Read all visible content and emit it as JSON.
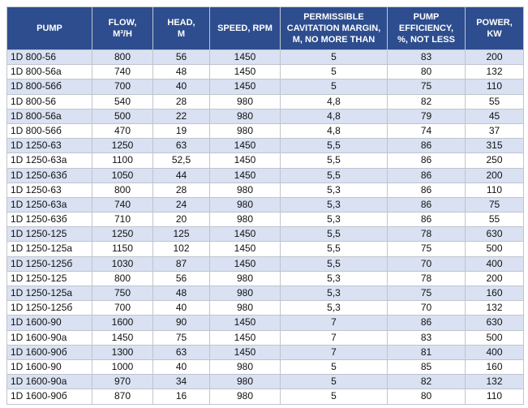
{
  "colors": {
    "header_bg": "#2d4d8e",
    "header_text": "#ffffff",
    "row_alt_bg": "#d9e1f2",
    "row_bg": "#ffffff",
    "border": "#bfc5cd",
    "body_text": "#111111"
  },
  "table": {
    "columns": [
      {
        "id": "pump",
        "label": "PUMP",
        "lines": [
          "PUMP"
        ]
      },
      {
        "id": "flow",
        "label": "FLOW, M³/H",
        "lines": [
          "FLOW,",
          "M³/H"
        ]
      },
      {
        "id": "head",
        "label": "HEAD, M",
        "lines": [
          "HEAD,",
          "M"
        ]
      },
      {
        "id": "speed",
        "label": "SPEED, RPM",
        "lines": [
          "SPEED, RPM"
        ]
      },
      {
        "id": "cavitation",
        "label": "PERMISSIBLE CAVITATION MARGIN, M, NO MORE THAN",
        "lines": [
          "PERMISSIBLE",
          "CAVITATION MARGIN,",
          "M, NO MORE THAN"
        ]
      },
      {
        "id": "efficiency",
        "label": "PUMP EFFICIENCY, %, NOT LESS",
        "lines": [
          "PUMP",
          "EFFICIENCY,",
          "%, NOT LESS"
        ]
      },
      {
        "id": "power",
        "label": "POWER, KW",
        "lines": [
          "POWER,",
          "KW"
        ]
      }
    ],
    "rows": [
      [
        "1D 800-56",
        "800",
        "56",
        "1450",
        "5",
        "83",
        "200"
      ],
      [
        "1D 800-56a",
        "740",
        "48",
        "1450",
        "5",
        "80",
        "132"
      ],
      [
        "1D 800-56б",
        "700",
        "40",
        "1450",
        "5",
        "75",
        "110"
      ],
      [
        "1D 800-56",
        "540",
        "28",
        "980",
        "4,8",
        "82",
        "55"
      ],
      [
        "1D 800-56a",
        "500",
        "22",
        "980",
        "4,8",
        "79",
        "45"
      ],
      [
        "1D 800-56б",
        "470",
        "19",
        "980",
        "4,8",
        "74",
        "37"
      ],
      [
        "1D 1250-63",
        "1250",
        "63",
        "1450",
        "5,5",
        "86",
        "315"
      ],
      [
        "1D 1250-63a",
        "1100",
        "52,5",
        "1450",
        "5,5",
        "86",
        "250"
      ],
      [
        "1D 1250-63б",
        "1050",
        "44",
        "1450",
        "5,5",
        "86",
        "200"
      ],
      [
        "1D 1250-63",
        "800",
        "28",
        "980",
        "5,3",
        "86",
        "110"
      ],
      [
        "1D 1250-63a",
        "740",
        "24",
        "980",
        "5,3",
        "86",
        "75"
      ],
      [
        "1D 1250-63б",
        "710",
        "20",
        "980",
        "5,3",
        "86",
        "55"
      ],
      [
        "1D 1250-125",
        "1250",
        "125",
        "1450",
        "5,5",
        "78",
        "630"
      ],
      [
        "1D 1250-125a",
        "1150",
        "102",
        "1450",
        "5,5",
        "75",
        "500"
      ],
      [
        "1D 1250-125б",
        "1030",
        "87",
        "1450",
        "5,5",
        "70",
        "400"
      ],
      [
        "1D 1250-125",
        "800",
        "56",
        "980",
        "5,3",
        "78",
        "200"
      ],
      [
        "1D 1250-125a",
        "750",
        "48",
        "980",
        "5,3",
        "75",
        "160"
      ],
      [
        "1D 1250-125б",
        "700",
        "40",
        "980",
        "5,3",
        "70",
        "132"
      ],
      [
        "1D 1600-90",
        "1600",
        "90",
        "1450",
        "7",
        "86",
        "630"
      ],
      [
        "1D 1600-90a",
        "1450",
        "75",
        "1450",
        "7",
        "83",
        "500"
      ],
      [
        "1D 1600-90б",
        "1300",
        "63",
        "1450",
        "7",
        "81",
        "400"
      ],
      [
        "1D 1600-90",
        "1000",
        "40",
        "980",
        "5",
        "85",
        "160"
      ],
      [
        "1D 1600-90a",
        "970",
        "34",
        "980",
        "5",
        "82",
        "132"
      ],
      [
        "1D 1600-90б",
        "870",
        "16",
        "980",
        "5",
        "80",
        "110"
      ]
    ]
  }
}
